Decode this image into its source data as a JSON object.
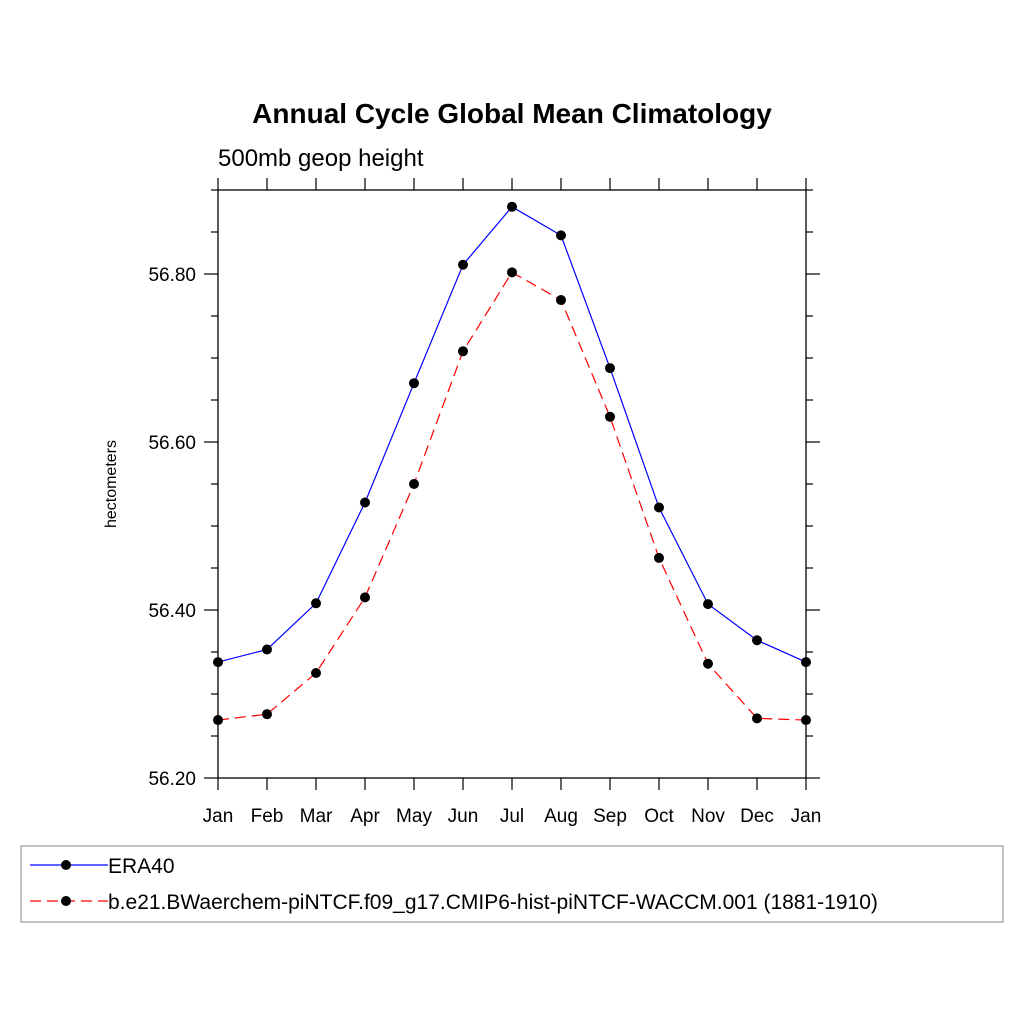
{
  "chart_data": {
    "type": "line",
    "title": "Annual Cycle Global Mean Climatology",
    "subtitle": "500mb geop height",
    "xlabel": "",
    "ylabel": "hectometers",
    "categories": [
      "Jan",
      "Feb",
      "Mar",
      "Apr",
      "May",
      "Jun",
      "Jul",
      "Aug",
      "Sep",
      "Oct",
      "Nov",
      "Dec",
      "Jan"
    ],
    "ylim": [
      56.2,
      56.9
    ],
    "yticks": [
      56.2,
      56.4,
      56.6,
      56.8
    ],
    "ytick_labels": [
      "56.20",
      "56.40",
      "56.60",
      "56.80"
    ],
    "grid": false,
    "legend_position": "bottom",
    "series": [
      {
        "name": "ERA40",
        "color": "#0000ff",
        "dash": "solid",
        "marker": "circle",
        "values": [
          56.338,
          56.353,
          56.408,
          56.528,
          56.67,
          56.811,
          56.88,
          56.846,
          56.688,
          56.522,
          56.407,
          56.364,
          56.338
        ]
      },
      {
        "name": "b.e21.BWaerchem-piNTCF.f09_g17.CMIP6-hist-piNTCF-WACCM.001 (1881-1910)",
        "color": "#ff0000",
        "dash": "dashed",
        "marker": "circle",
        "values": [
          56.269,
          56.276,
          56.325,
          56.415,
          56.55,
          56.708,
          56.802,
          56.769,
          56.63,
          56.462,
          56.336,
          56.271,
          56.269
        ]
      }
    ]
  }
}
